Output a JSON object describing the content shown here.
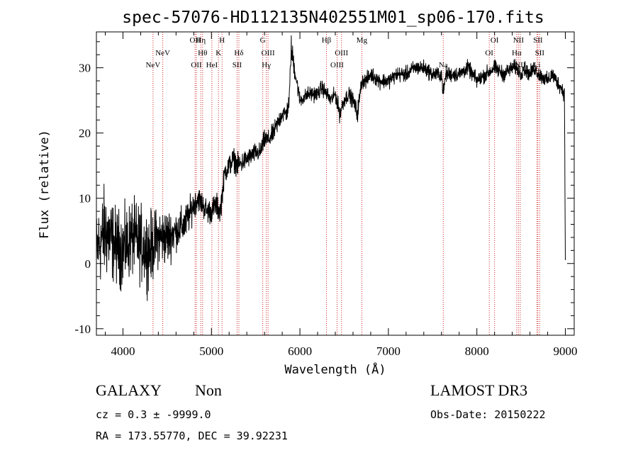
{
  "chart_data": {
    "type": "line",
    "title": "spec-57076-HD112135N402551M01_sp06-170.fits",
    "xlabel": "Wavelength (Å)",
    "ylabel": "Flux (relative)",
    "xlim": [
      3700,
      9100
    ],
    "ylim": [
      -11,
      35.5
    ],
    "x_ticks": [
      4000,
      5000,
      6000,
      7000,
      8000,
      9000
    ],
    "y_ticks": [
      -10,
      0,
      10,
      20,
      30
    ],
    "series": [
      {
        "name": "spectrum",
        "x": [
          3700,
          3800,
          3900,
          4000,
          4100,
          4200,
          4300,
          4400,
          4500,
          4600,
          4700,
          4800,
          4850,
          4900,
          4950,
          5000,
          5050,
          5100,
          5150,
          5200,
          5250,
          5300,
          5400,
          5500,
          5550,
          5600,
          5650,
          5700,
          5800,
          5850,
          5880,
          5900,
          5950,
          6000,
          6100,
          6200,
          6250,
          6300,
          6350,
          6400,
          6450,
          6500,
          6550,
          6600,
          6650,
          6700,
          6750,
          6800,
          6900,
          7000,
          7100,
          7200,
          7300,
          7400,
          7500,
          7600,
          7620,
          7650,
          7700,
          7800,
          7900,
          8000,
          8100,
          8200,
          8300,
          8400,
          8450,
          8500,
          8520,
          8600,
          8650,
          8700,
          8800,
          8850,
          8900,
          8950,
          8990,
          9000
        ],
        "y": [
          2,
          5,
          3,
          2,
          4,
          3,
          2,
          4,
          4,
          5,
          6,
          9,
          10,
          9,
          8,
          8,
          9,
          8,
          14,
          15,
          16,
          15,
          16,
          17,
          17,
          19,
          19,
          20,
          23,
          23,
          25,
          33,
          29,
          25,
          26,
          26,
          27,
          26,
          25,
          26,
          23,
          25,
          26,
          25,
          23,
          28,
          28,
          29,
          28,
          28,
          29,
          29,
          30,
          30,
          29,
          29,
          26,
          29,
          29,
          29,
          30,
          28,
          29,
          30,
          29,
          30,
          30,
          29,
          30,
          29,
          30,
          29,
          28,
          29,
          28,
          27,
          26,
          0
        ],
        "noise": [
          4,
          5,
          4,
          4,
          4,
          4,
          4,
          3,
          3,
          2,
          2,
          1.5,
          1.3,
          1.3,
          1.3,
          1.3,
          1.3,
          1.3,
          1.2,
          1.2,
          1.2,
          1.2,
          1,
          1,
          1,
          1,
          1,
          1,
          1,
          1,
          1,
          1.5,
          1,
          0.8,
          0.8,
          0.8,
          0.8,
          0.8,
          0.8,
          0.8,
          1,
          0.8,
          0.8,
          0.8,
          1,
          0.8,
          0.8,
          0.8,
          0.8,
          0.8,
          0.8,
          0.8,
          0.8,
          0.8,
          0.8,
          0.8,
          0.8,
          0.8,
          0.8,
          0.8,
          0.8,
          0.8,
          0.8,
          0.8,
          0.8,
          0.8,
          0.8,
          0.8,
          0.8,
          0.8,
          0.8,
          0.8,
          0.8,
          0.8,
          0.8,
          0.8,
          0.8,
          0
        ]
      }
    ],
    "spectral_lines": [
      {
        "label": "NeV",
        "wavelength": 4340,
        "row": 3
      },
      {
        "label": "NeV",
        "wavelength": 4450,
        "row": 2
      },
      {
        "label": "OII",
        "wavelength": 4815,
        "row": 1
      },
      {
        "label": "OII",
        "wavelength": 4830,
        "row": 3
      },
      {
        "label": "Hη",
        "wavelength": 4880,
        "row": 1
      },
      {
        "label": "Hθ",
        "wavelength": 4900,
        "row": 2
      },
      {
        "label": "HeI",
        "wavelength": 5005,
        "row": 3
      },
      {
        "label": "H",
        "wavelength": 5120,
        "row": 1
      },
      {
        "label": "K",
        "wavelength": 5080,
        "row": 2
      },
      {
        "label": "Hδ",
        "wavelength": 5310,
        "row": 2
      },
      {
        "label": "SII",
        "wavelength": 5290,
        "row": 3
      },
      {
        "label": "G",
        "wavelength": 5580,
        "row": 1
      },
      {
        "label": "OIII",
        "wavelength": 5640,
        "row": 2
      },
      {
        "label": "Hγ",
        "wavelength": 5620,
        "row": 3
      },
      {
        "label": "Hβ",
        "wavelength": 6300,
        "row": 1
      },
      {
        "label": "OIII",
        "wavelength": 6470,
        "row": 2
      },
      {
        "label": "OIII",
        "wavelength": 6420,
        "row": 3
      },
      {
        "label": "Mg",
        "wavelength": 6700,
        "row": 1
      },
      {
        "label": "Na",
        "wavelength": 7620,
        "row": 3
      },
      {
        "label": "OI",
        "wavelength": 8200,
        "row": 1
      },
      {
        "label": "OI",
        "wavelength": 8140,
        "row": 2
      },
      {
        "label": "NII",
        "wavelength": 8470,
        "row": 1
      },
      {
        "label": "Hα",
        "wavelength": 8450,
        "row": 2
      },
      {
        "label": "NII",
        "wavelength": 8490,
        "row": 3
      },
      {
        "label": "SII",
        "wavelength": 8690,
        "row": 1
      },
      {
        "label": "SII",
        "wavelength": 8710,
        "row": 2
      },
      {
        "label": "Li",
        "wavelength": 8680,
        "row": 3
      }
    ],
    "annotation": "Spectral plot with dotted red vertical reference lines at labeled emission/absorption features"
  },
  "footer": {
    "object_class": "GALAXY",
    "subclass": "Non",
    "survey": "LAMOST DR3",
    "cz_line": "cz = 0.3 ± -9999.0",
    "obs_date_line": "Obs-Date: 20150222",
    "coords_line": "RA = 173.55770, DEC =  39.92231"
  },
  "colors": {
    "line_marker": "#cc2222",
    "spectrum": "#000000",
    "background": "#ffffff"
  }
}
